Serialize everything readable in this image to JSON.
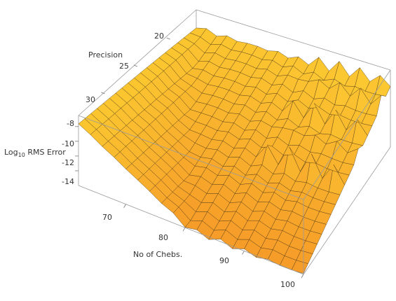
{
  "chart_data": {
    "type": "surface3d",
    "title": "",
    "axes": {
      "x": {
        "label": "No of Chebs.",
        "range": [
          62,
          100
        ],
        "ticks": [
          70,
          80,
          90,
          100
        ]
      },
      "y": {
        "label": "Precision",
        "range": [
          16,
          34
        ],
        "ticks": [
          20,
          25,
          30
        ]
      },
      "z": {
        "label_main": "Log",
        "label_sub": "10",
        "label_rest": " RMS Error",
        "range": [
          -16,
          -6.5
        ],
        "ticks": [
          -8,
          -10,
          -12,
          -14
        ]
      }
    },
    "grid_lines": {
      "x_count": 19,
      "y_count": 19
    },
    "colors": {
      "surface_high": "#fbbb2c",
      "surface_low": "#f6a030",
      "mesh": "#3a2a10",
      "box": "#9a9a9a"
    },
    "description_points": [
      {
        "x": 62,
        "y": 34,
        "z": -7.6
      },
      {
        "x": 62,
        "y": 16,
        "z": -6.8
      },
      {
        "x": 80,
        "y": 34,
        "z": -15.0
      },
      {
        "x": 100,
        "y": 16,
        "z": -9.5
      },
      {
        "x": 100,
        "y": 34,
        "z": -16.0
      }
    ]
  }
}
